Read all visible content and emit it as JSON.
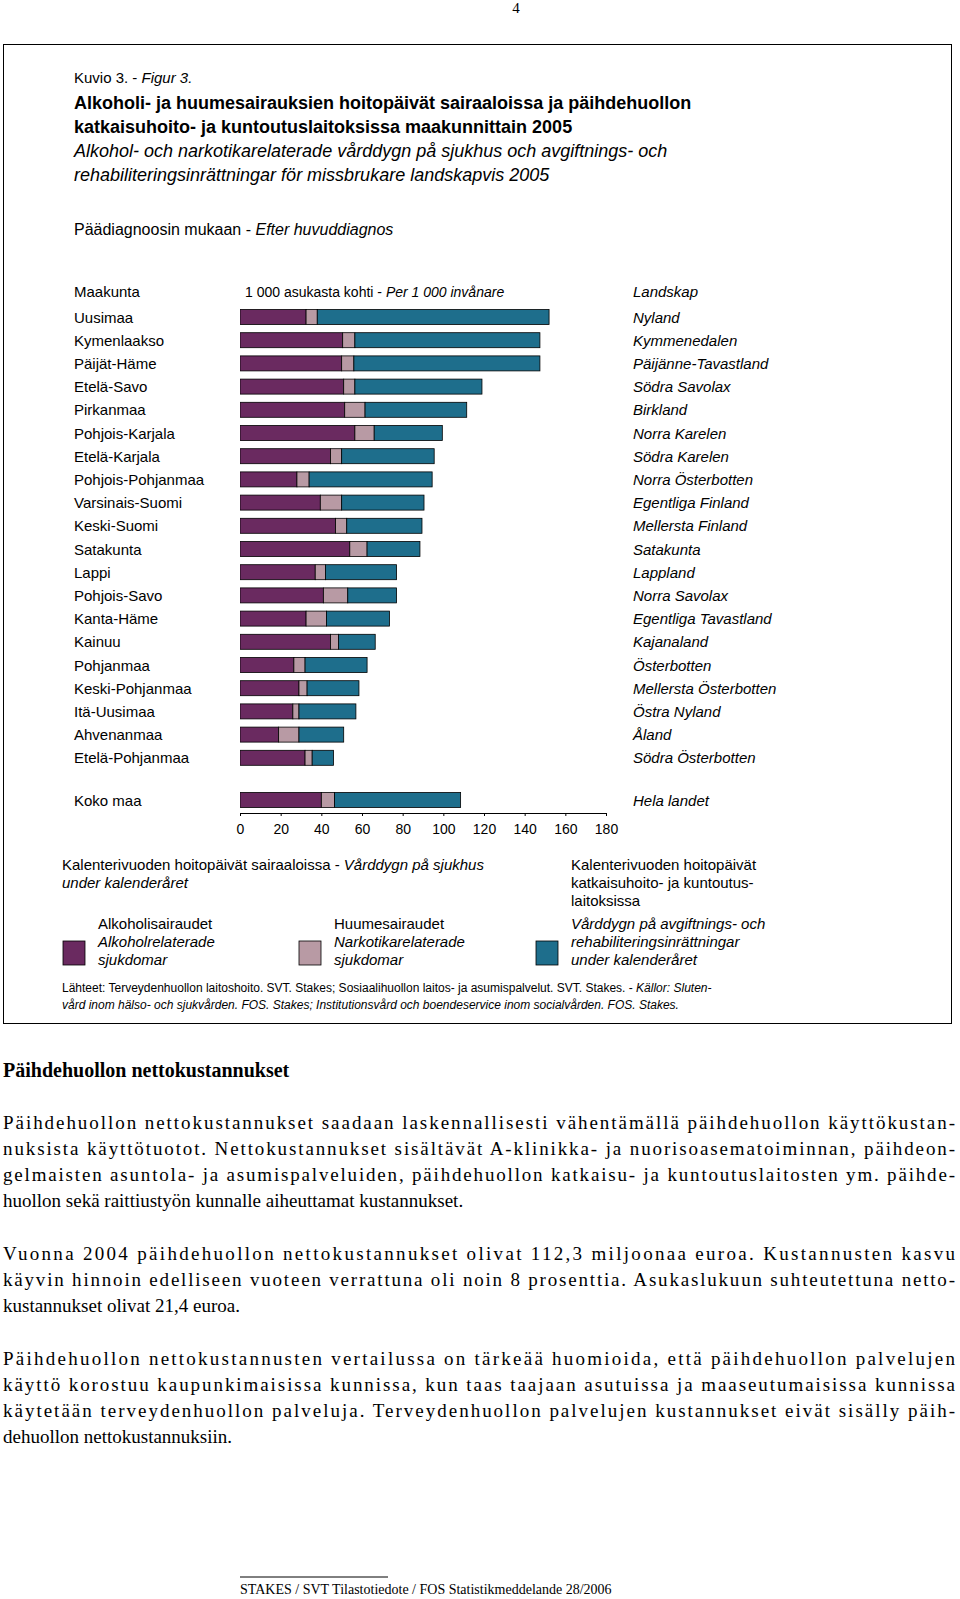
{
  "page_number": "4",
  "chart_data": {
    "type": "bar",
    "orientation": "horizontal",
    "stacked": true,
    "figure_label": {
      "fi": "Kuvio 3. - ",
      "sv": "Figur 3."
    },
    "title": {
      "fi": [
        "Alkoholi- ja huumesairauksien hoitopäivät sairaaloissa ja päihdehuollon",
        "katkaisuhoito- ja kuntoutuslaitoksissa maakunnittain 2005"
      ],
      "sv": [
        "Alkohol- och narkotikarelaterade vårddygn på sjukhus och avgiftnings- och",
        "rehabiliteringsinrättningar för missbrukare landskapvis 2005"
      ]
    },
    "subtitle": {
      "fi": "Päädiagnoosin mukaan - ",
      "sv": "Efter huvuddiagnos"
    },
    "row_header": {
      "fi": "Maakunta",
      "sv": "Landskap"
    },
    "axis_header": {
      "fi": "1 000 asukasta kohti - ",
      "sv": "Per 1 000 invånare"
    },
    "categories": [
      "Uusimaa",
      "Kymenlaakso",
      "Päijät-Häme",
      "Etelä-Savo",
      "Pirkanmaa",
      "Pohjois-Karjala",
      "Etelä-Karjala",
      "Pohjois-Pohjanmaa",
      "Varsinais-Suomi",
      "Keski-Suomi",
      "Satakunta",
      "Lappi",
      "Pohjois-Savo",
      "Kanta-Häme",
      "Kainuu",
      "Pohjanmaa",
      "Keski-Pohjanmaa",
      "Itä-Uusimaa",
      "Ahvenanmaa",
      "Etelä-Pohjanmaa",
      "Koko maa"
    ],
    "categories_sv": [
      "Nyland",
      "Kymmenedalen",
      "Päijänne-Tavastland",
      "Södra Savolax",
      "Birkland",
      "Norra Karelen",
      "Södra Karelen",
      "Norra Österbotten",
      "Egentliga Finland",
      "Mellersta Finland",
      "Satakunta",
      "Lappland",
      "Norra Savolax",
      "Egentliga Tavastland",
      "Kajanaland",
      "Österbotten",
      "Mellersta Österbotten",
      "Östra Nyland",
      "Åland",
      "Södra Österbotten",
      "Hela landet"
    ],
    "xlim": [
      0,
      180
    ],
    "xticks": [
      0,
      20,
      40,
      60,
      80,
      100,
      120,
      140,
      160,
      180
    ],
    "legend_groups": [
      {
        "fi": "Kalenterivuoden hoitopäivät sairaaloissa - ",
        "sv": [
          "Vårddygn på sjukhus",
          "under kalenderåret"
        ]
      }
    ],
    "series": [
      {
        "name": [
          "Alkoholisairaudet"
        ],
        "name_sv": [
          "Alkoholrelaterade",
          "sjukdomar"
        ],
        "color": "#6a2a60",
        "values": [
          32.5,
          50.5,
          50,
          51,
          51.5,
          56.5,
          44.5,
          28,
          39.5,
          47,
          54,
          37,
          41,
          32.5,
          44.5,
          26.5,
          29,
          26,
          19,
          32,
          40
        ]
      },
      {
        "name": [
          "Huumesairaudet"
        ],
        "name_sv": [
          "Narkotikarelaterade",
          "sjukdomar"
        ],
        "color": "#b89aa4",
        "values": [
          5.5,
          6,
          6,
          5.5,
          10,
          9.5,
          5.5,
          6,
          10.5,
          5.5,
          8.5,
          5,
          12,
          10,
          4,
          5.5,
          4,
          3,
          10,
          3.5,
          6.5
        ]
      },
      {
        "name": [
          "Kalenterivuoden hoitopäivät",
          "katkaisuhoito- ja kuntoutus-",
          "laitoksissa"
        ],
        "name_sv": [
          "Vårddygn på avgiftnings- och",
          "rehabiliteringsinrättningar",
          "under kalenderåret"
        ],
        "color": "#1e6e8c",
        "values": [
          114,
          91,
          91.5,
          62.5,
          50,
          33.5,
          45.5,
          60.5,
          40.5,
          37,
          26,
          35,
          24,
          31,
          18,
          30.5,
          25.5,
          28,
          22,
          10.5,
          62
        ]
      }
    ],
    "source": {
      "fi": "Lähteet: Terveydenhuollon laitoshoito. SVT. Stakes; Sosiaalihuollon laitos- ja asumispalvelut. SVT. Stakes. - ",
      "sv": [
        "Källor: Sluten-",
        "vård inom hälso- och sjukvården. FOS. Stakes; Institutionsvård och boendeservice inom socialvården. FOS. Stakes."
      ]
    }
  },
  "section": {
    "heading": "Päihdehuollon nettokustannukset",
    "paragraphs": [
      [
        "Päihdehuollon nettokustannukset saadaan laskennallisesti vähentämällä päihdehuollon käyttökustan-",
        "nuksista käyttötuotot. Nettokustannukset sisältävät A-klinikka- ja nuorisoasematoiminnan, päihdeon-",
        "gelmaisten asuntola- ja asumispalveluiden, päihdehuollon katkaisu- ja kuntoutuslaitosten ym. päihde-",
        "huollon sekä raittiustyön kunnalle aiheuttamat kustannukset."
      ],
      [
        "Vuonna 2004 päihdehuollon nettokustannukset olivat 112,3 miljoonaa euroa. Kustannusten kasvu",
        "käyvin hinnoin edelliseen vuoteen verrattuna oli noin 8 prosenttia. Asukaslukuun suhteutettuna netto-",
        "kustannukset olivat 21,4 euroa."
      ],
      [
        "Päihdehuollon nettokustannusten vertailussa on tärkeää huomioida, että päihdehuollon palvelujen",
        "käyttö korostuu kaupunkimaisissa kunnissa, kun taas taajaan asutuissa ja maaseutumaisissa kunnissa",
        "käytetään terveydenhuollon palveluja. Terveydenhuollon palvelujen kustannukset eivät sisälly päih-",
        "dehuollon nettokustannuksiin."
      ]
    ]
  },
  "footer": "STAKES / SVT Tilastotiedote / FOS Statistikmeddelande 28/2006"
}
